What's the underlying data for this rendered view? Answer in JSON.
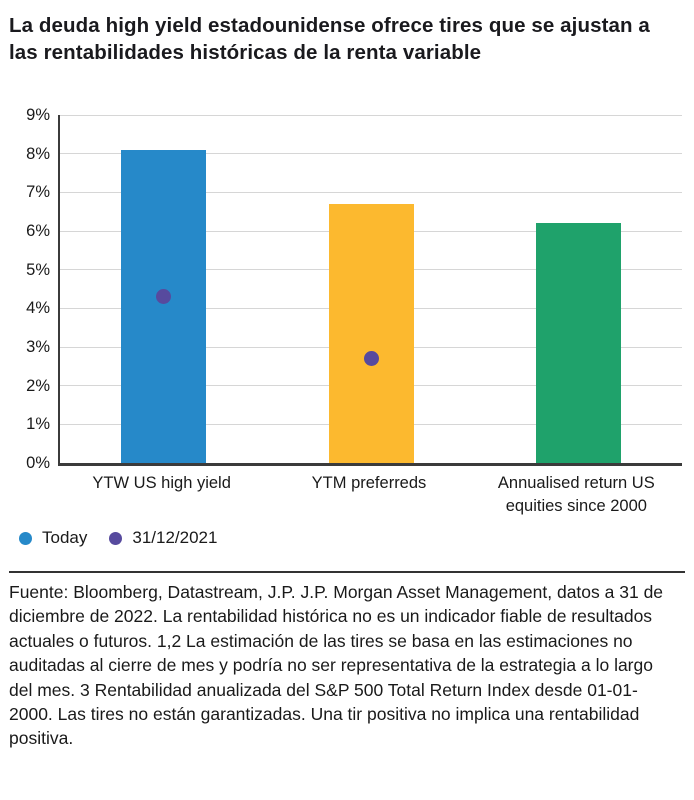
{
  "title": {
    "text": "La deuda high yield estadounidense ofrece tires que se ajustan a las rentabilidades históricas de la renta variable",
    "lines": [
      "La deuda high yield estadounidense ofrece tires que se ajustan a",
      "las rentabilidades históricas de la renta variable"
    ]
  },
  "chart_data": {
    "type": "bar",
    "categories": [
      "YTW US high yield",
      "YTM preferreds",
      "Annualised return US equities since 2000"
    ],
    "series": [
      {
        "name": "Today",
        "render": "bar",
        "values": [
          8.1,
          6.7,
          6.2
        ],
        "colors": [
          "#2689C9",
          "#FCB92F",
          "#1FA26B"
        ]
      },
      {
        "name": "31/12/2021",
        "render": "point",
        "values": [
          4.3,
          2.7,
          null
        ],
        "color": "#574A9E"
      }
    ],
    "legend": [
      {
        "label": "Today",
        "color": "#2689C9"
      },
      {
        "label": "31/12/2021",
        "color": "#574A9E"
      }
    ],
    "xlabel": "",
    "ylabel": "",
    "ylim": [
      0,
      9
    ],
    "ytick_step": 1,
    "ytick_suffix": "%",
    "grid": true,
    "legend_position": "bottom-left",
    "colors_meta": {
      "gridline": "#D6D6D6",
      "axis_spine": "#3B3B3B",
      "text": "#1A1A1A"
    }
  },
  "source_note": "Fuente: Bloomberg, Datastream, J.P. J.P. Morgan Asset Management, datos a 31 de diciembre de 2022. La rentabilidad histórica no es un indicador fiable de resultados actuales o futuros. 1,2 La estimación de las tires se basa en las estimaciones no auditadas al cierre de mes y podría no ser representativa de la estrategia a lo largo del mes. 3 Rentabilidad anualizada del S&P 500 Total Return Index desde 01-01-2000. Las tires no están garantizadas. Una tir positiva no implica una rentabilidad positiva."
}
